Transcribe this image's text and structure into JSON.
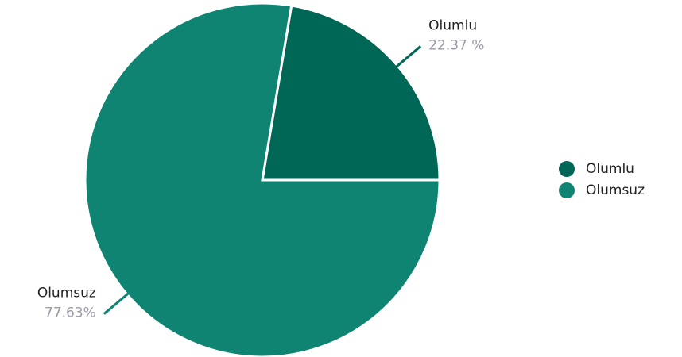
{
  "chart_data": {
    "type": "pie",
    "categories": [
      "Olumlu",
      "Olumsuz"
    ],
    "values": [
      22.37,
      77.63
    ],
    "value_labels": [
      "22.37 %",
      "77.63%"
    ],
    "colors": [
      "#006655",
      "#108472"
    ],
    "legend": "right"
  }
}
